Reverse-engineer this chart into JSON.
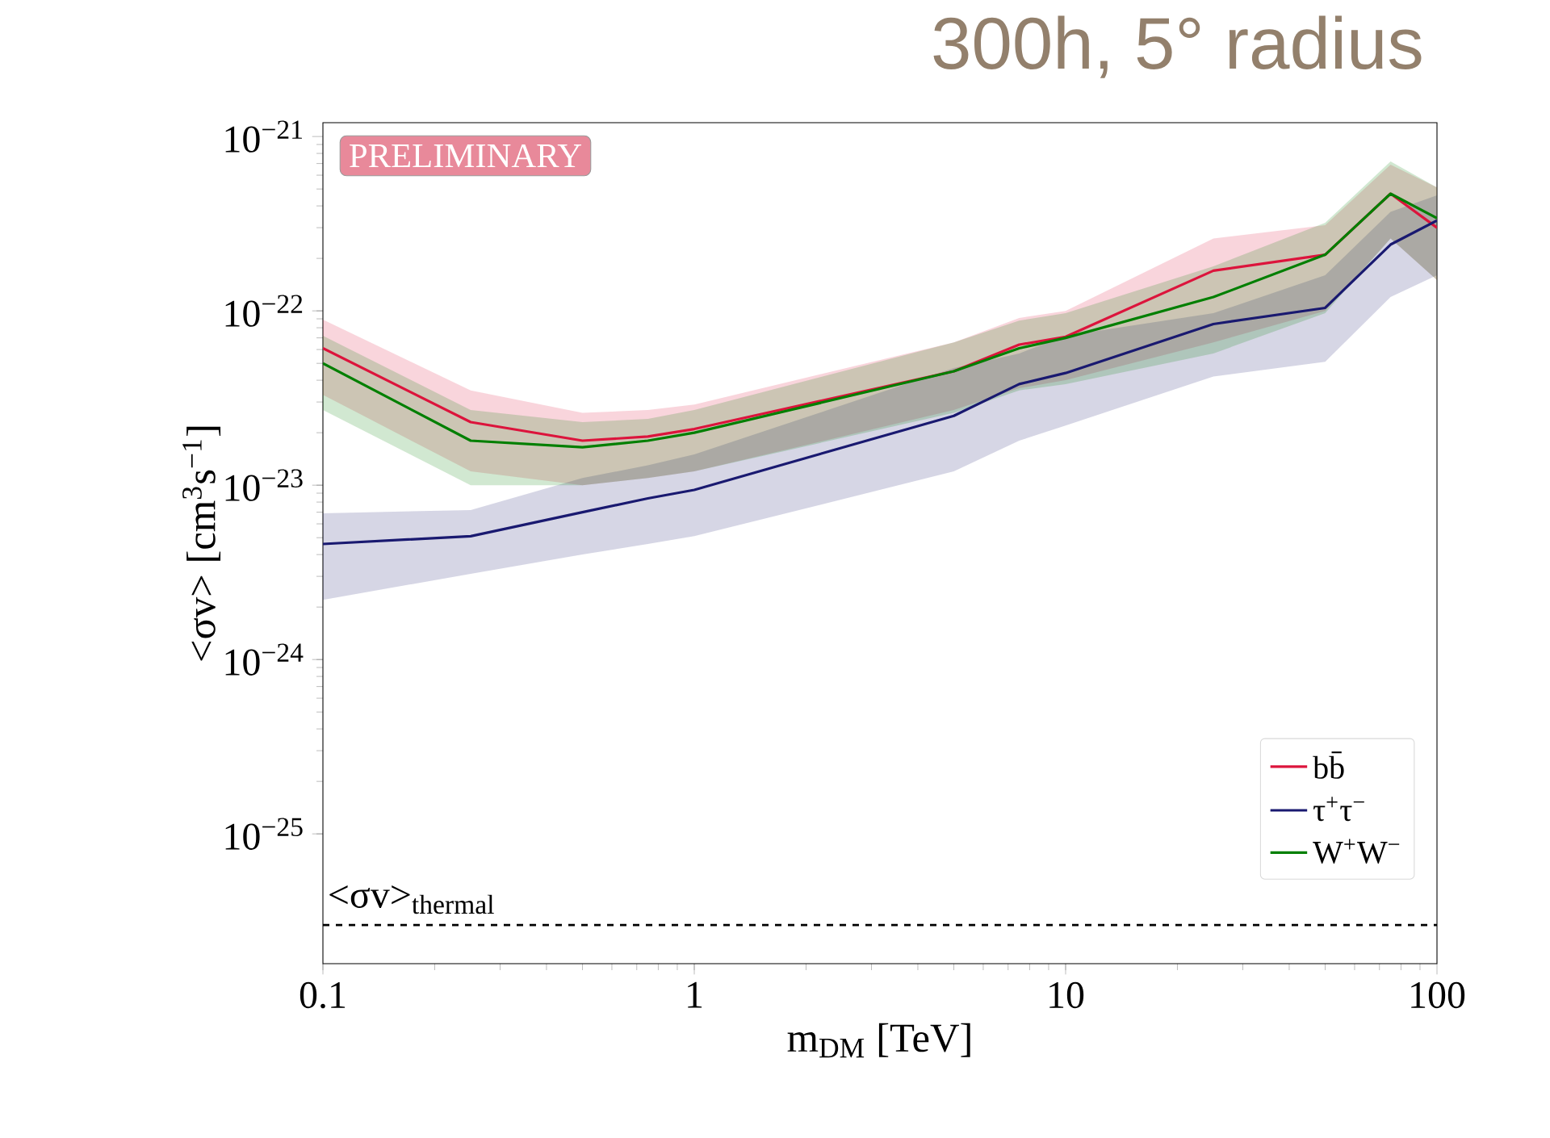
{
  "chart_data": {
    "type": "line",
    "title": "300h, 5° radius",
    "xlabel": "m$_{DM}$ [TeV]",
    "ylabel": "<σv> [cm$^{3}$s$^{−1}$]",
    "x": [
      0.1,
      0.25,
      0.5,
      0.75,
      1,
      5,
      7.5,
      10,
      25,
      50,
      75,
      100
    ],
    "series": [
      {
        "name": "bb̄",
        "color": "#dc143c",
        "values": [
          6.1e-23,
          2.3e-23,
          1.8e-23,
          1.9e-23,
          2.1e-23,
          4.5e-23,
          6.4e-23,
          7.1e-23,
          1.7e-22,
          2.1e-22,
          4.7e-22,
          3e-22
        ],
        "upper": [
          8.9e-23,
          3.5e-23,
          2.6e-23,
          2.7e-23,
          2.9e-23,
          6.6e-23,
          9.1e-23,
          1e-22,
          2.6e-22,
          3.1e-22,
          6.9e-22,
          5.1e-22
        ],
        "lower": [
          3.3e-23,
          1.2e-23,
          1e-23,
          1.1e-23,
          1.2e-23,
          2.7e-23,
          3.6e-23,
          4e-23,
          6.6e-23,
          1e-22,
          2.6e-22,
          1.5e-22
        ]
      },
      {
        "name": "τ$^{+}$τ$^{−}$",
        "color": "#191970",
        "values": [
          4.6e-24,
          5.1e-24,
          7e-24,
          8.4e-24,
          9.4e-24,
          2.5e-23,
          3.8e-23,
          4.4e-23,
          8.4e-23,
          1.04e-22,
          2.4e-22,
          3.3e-22
        ],
        "upper": [
          6.9e-24,
          7.2e-24,
          1.1e-23,
          1.3e-23,
          1.5e-23,
          4.7e-23,
          5.7e-23,
          7.2e-23,
          9.7e-23,
          1.6e-22,
          3.7e-22,
          4.6e-22
        ],
        "lower": [
          2.2e-24,
          3.1e-24,
          4e-24,
          4.6e-24,
          5.1e-24,
          1.2e-23,
          1.8e-23,
          2.2e-23,
          4.2e-23,
          5.1e-23,
          1.2e-22,
          1.6e-22
        ]
      },
      {
        "name": "W$^{+}$W$^{−}$",
        "color": "#007f00",
        "values": [
          5e-23,
          1.8e-23,
          1.65e-23,
          1.8e-23,
          2e-23,
          4.5e-23,
          6.1e-23,
          7e-23,
          1.2e-22,
          2.1e-22,
          4.7e-22,
          3.4e-22
        ],
        "upper": [
          7.2e-23,
          2.7e-23,
          2.3e-23,
          2.4e-23,
          2.7e-23,
          6.6e-23,
          8.8e-23,
          9.7e-23,
          1.8e-22,
          3.2e-22,
          7.2e-22,
          5.1e-22
        ],
        "lower": [
          2.7e-23,
          1e-23,
          1e-23,
          1.1e-23,
          1.2e-23,
          2.6e-23,
          3.5e-23,
          3.8e-23,
          5.7e-23,
          9.7e-23,
          2.6e-22,
          1.5e-22
        ]
      }
    ],
    "xlim": [
      0.1,
      100
    ],
    "ylim": [
      1.8e-26,
      1.2e-21
    ],
    "xticks": [
      0.1,
      1,
      10,
      100
    ],
    "yticks": [
      {
        "value": 1e-25,
        "label": "10$^{−25}$"
      },
      {
        "value": 1e-24,
        "label": "10$^{−24}$"
      },
      {
        "value": 1e-23,
        "label": "10$^{−23}$"
      },
      {
        "value": 1e-22,
        "label": "10$^{−22}$"
      },
      {
        "value": 1e-21,
        "label": "10$^{−21}$"
      }
    ],
    "log": "xy",
    "grid": false,
    "legend": "bottom right",
    "marker": "none",
    "line_style": "solid",
    "ref_lines": [
      {
        "axis": "y",
        "value": 3e-26,
        "label": "<σv>$_{thermal}$",
        "color": "#000000",
        "line_style": "dashed"
      }
    ],
    "annotations": [
      "PRELIMINARY"
    ]
  }
}
